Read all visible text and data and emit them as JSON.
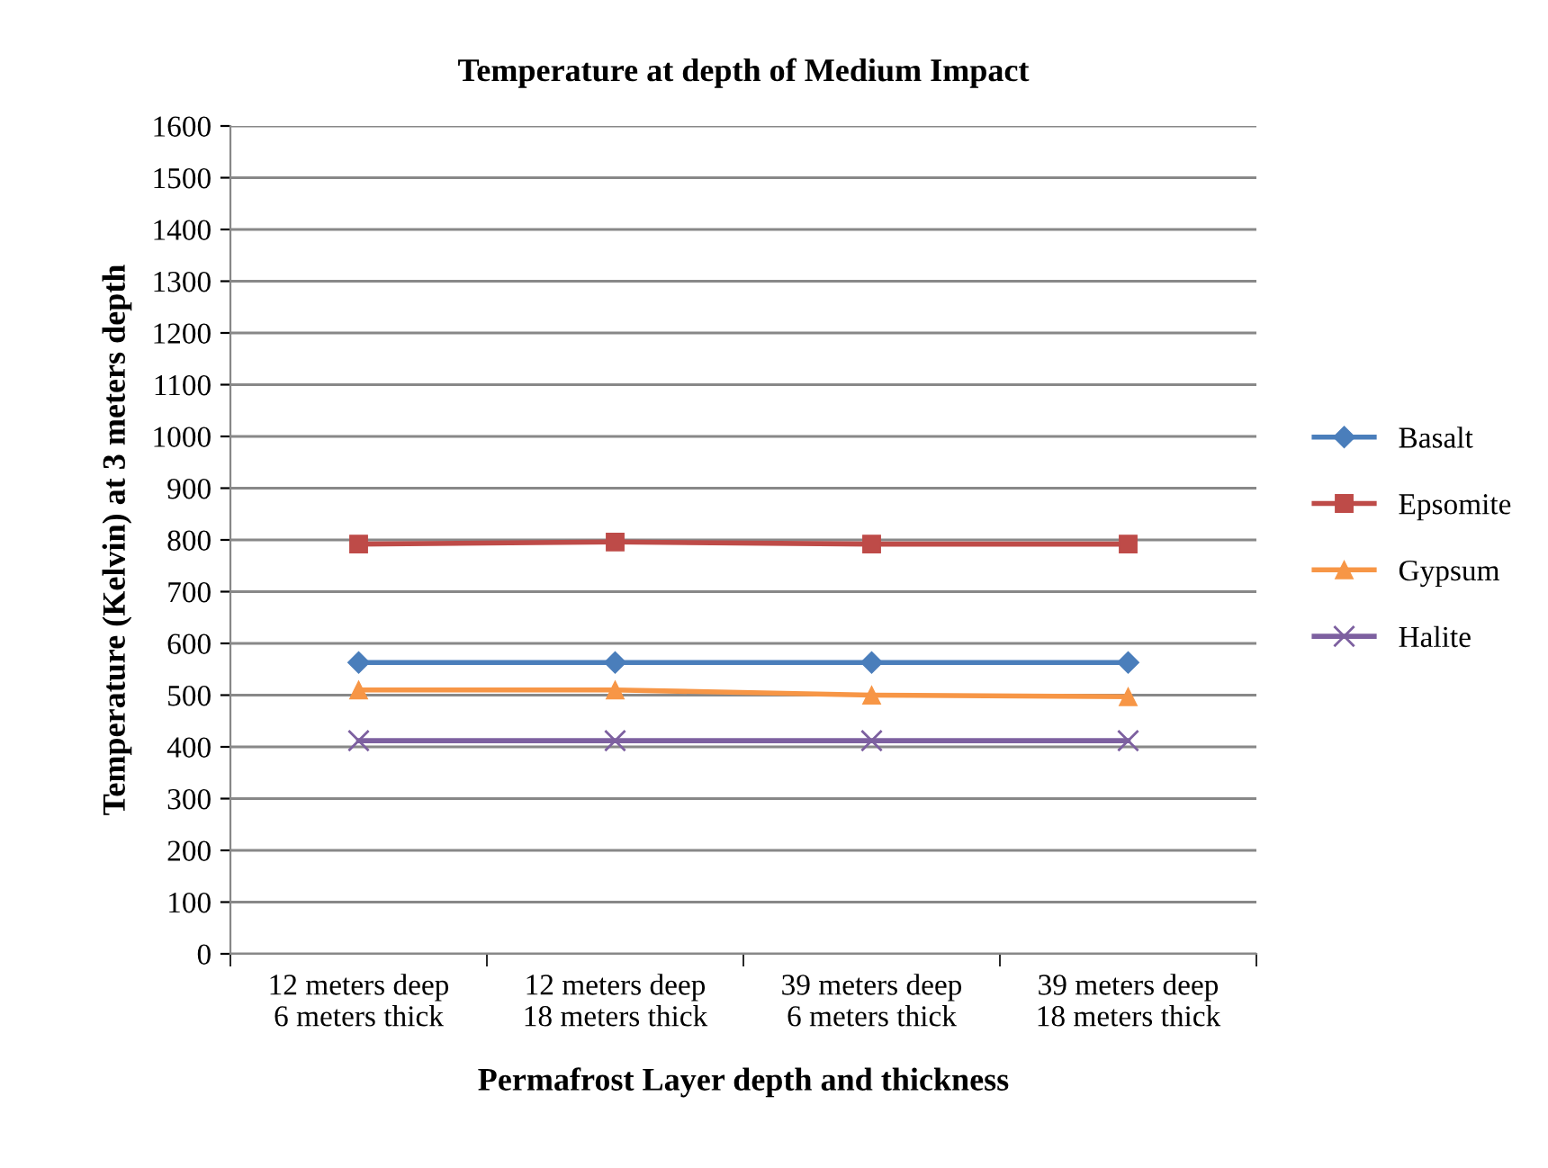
{
  "chart_data": {
    "type": "line",
    "title": "Temperature at depth of Medium Impact",
    "xlabel": "Permafrost Layer depth and thickness",
    "ylabel": "Temperature (Kelvin) at 3 meters depth",
    "categories": [
      "12 meters deep\n6 meters thick",
      "12 meters deep\n18 meters thick",
      "39 meters deep\n6 meters thick",
      "39 meters deep\n18 meters thick"
    ],
    "series": [
      {
        "name": "Basalt",
        "color": "#4a7ebb",
        "marker": "diamond",
        "values": [
          563,
          563,
          563,
          563
        ]
      },
      {
        "name": "Epsomite",
        "color": "#be4b48",
        "marker": "square",
        "values": [
          792,
          796,
          792,
          792
        ]
      },
      {
        "name": "Gypsum",
        "color": "#f79646",
        "marker": "triangle",
        "values": [
          510,
          510,
          500,
          497
        ]
      },
      {
        "name": "Halite",
        "color": "#7d60a0",
        "marker": "cross",
        "values": [
          412,
          412,
          412,
          412
        ]
      }
    ],
    "ylim": [
      0,
      1600
    ],
    "yticks": [
      0,
      100,
      200,
      300,
      400,
      500,
      600,
      700,
      800,
      900,
      1000,
      1100,
      1200,
      1300,
      1400,
      1500,
      1600
    ],
    "grid": "y",
    "legend": "right",
    "line_style": "solid"
  }
}
